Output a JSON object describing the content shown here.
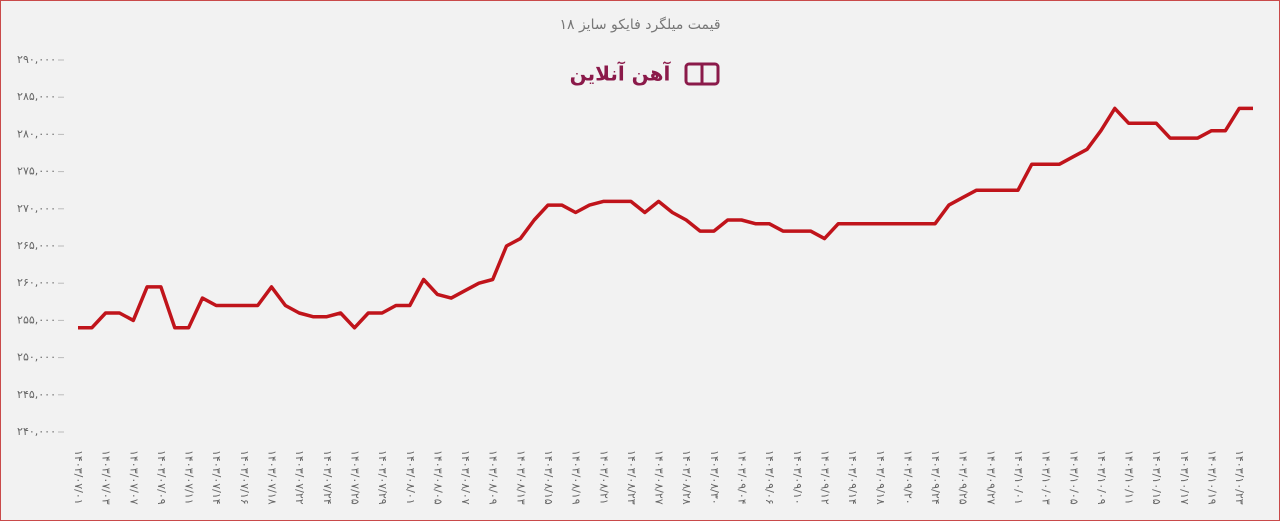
{
  "chart_data": {
    "type": "line",
    "title": "قیمت میلگرد فایکو سایز ۱۸",
    "watermark": "آهن آنلاین",
    "categories": [
      "۱۴۰۳/۰۷/۰۱",
      null,
      "۱۴۰۳/۰۷/۰۳",
      null,
      "۱۴۰۳/۰۷/۰۷",
      null,
      "۱۴۰۳/۰۷/۰۹",
      null,
      "۱۴۰۳/۰۷/۱۱",
      null,
      "۱۴۰۳/۰۷/۱۴",
      null,
      "۱۴۰۳/۰۷/۱۶",
      null,
      "۱۴۰۳/۰۷/۱۸",
      null,
      "۱۴۰۳/۰۷/۲۲",
      null,
      "۱۴۰۳/۰۷/۲۴",
      null,
      "۱۴۰۳/۰۷/۲۵",
      null,
      "۱۴۰۳/۰۷/۲۹",
      null,
      "۱۴۰۳/۰۸/۰۱",
      null,
      "۱۴۰۳/۰۸/۰۵",
      null,
      "۱۴۰۳/۰۸/۰۷",
      null,
      "۱۴۰۳/۰۸/۰۹",
      null,
      "۱۴۰۳/۰۸/۱۳",
      null,
      "۱۴۰۳/۰۸/۱۵",
      null,
      "۱۴۰۳/۰۸/۱۹",
      null,
      "۱۴۰۳/۰۸/۲۱",
      null,
      "۱۴۰۳/۰۸/۲۳",
      null,
      "۱۴۰۳/۰۸/۲۷",
      null,
      "۱۴۰۳/۰۸/۲۸",
      null,
      "۱۴۰۳/۰۸/۳۰",
      null,
      "۱۴۰۳/۰۹/۰۴",
      null,
      "۱۴۰۳/۰۹/۰۶",
      null,
      "۱۴۰۳/۰۹/۱۰",
      null,
      "۱۴۰۳/۰۹/۱۲",
      null,
      "۱۴۰۳/۰۹/۱۴",
      null,
      "۱۴۰۳/۰۹/۱۸",
      null,
      "۱۴۰۳/۰۹/۲۰",
      null,
      "۱۴۰۳/۰۹/۲۴",
      null,
      "۱۴۰۳/۰۹/۲۵",
      null,
      "۱۴۰۳/۰۹/۲۷",
      null,
      "۱۴۰۳/۱۰/۰۱",
      null,
      "۱۴۰۳/۱۰/۰۳",
      null,
      "۱۴۰۳/۱۰/۰۵",
      null,
      "۱۴۰۳/۱۰/۰۹",
      null,
      "۱۴۰۳/۱۰/۱۱",
      null,
      "۱۴۰۳/۱۰/۱۵",
      null,
      "۱۴۰۳/۱۰/۱۷",
      null,
      "۱۴۰۳/۱۰/۱۹",
      null,
      "۱۴۰۳/۱۰/۲۳",
      null
    ],
    "values": [
      254000,
      254000,
      256000,
      256000,
      255000,
      259500,
      259500,
      254000,
      254000,
      258000,
      257000,
      257000,
      257000,
      257000,
      259500,
      257000,
      256000,
      255500,
      255500,
      256000,
      254000,
      256000,
      256000,
      257000,
      257000,
      260500,
      258500,
      258000,
      259000,
      260000,
      260500,
      265000,
      266000,
      268500,
      270500,
      270500,
      269500,
      270500,
      271000,
      271000,
      271000,
      269500,
      271000,
      269500,
      268500,
      267000,
      267000,
      268500,
      268500,
      268000,
      268000,
      267000,
      267000,
      267000,
      266000,
      268000,
      268000,
      268000,
      268000,
      268000,
      268000,
      268000,
      268000,
      270500,
      271500,
      272500,
      272500,
      272500,
      272500,
      276000,
      276000,
      276000,
      277000,
      278000,
      280500,
      283500,
      281500,
      281500,
      281500,
      279500,
      279500,
      279500,
      280500,
      280500,
      283500,
      283500
    ],
    "color": "#c0141b",
    "ylim": [
      240000,
      290000
    ],
    "yticks": [
      {
        "value": 240000,
        "label": "۲۴۰,۰۰۰"
      },
      {
        "value": 245000,
        "label": "۲۴۵,۰۰۰"
      },
      {
        "value": 250000,
        "label": "۲۵۰,۰۰۰"
      },
      {
        "value": 255000,
        "label": "۲۵۵,۰۰۰"
      },
      {
        "value": 260000,
        "label": "۲۶۰,۰۰۰"
      },
      {
        "value": 265000,
        "label": "۲۶۵,۰۰۰"
      },
      {
        "value": 270000,
        "label": "۲۷۰,۰۰۰"
      },
      {
        "value": 275000,
        "label": "۲۷۵,۰۰۰"
      },
      {
        "value": 280000,
        "label": "۲۸۰,۰۰۰"
      },
      {
        "value": 285000,
        "label": "۲۸۵,۰۰۰"
      },
      {
        "value": 290000,
        "label": "۲۹۰,۰۰۰"
      }
    ],
    "grid": false
  }
}
